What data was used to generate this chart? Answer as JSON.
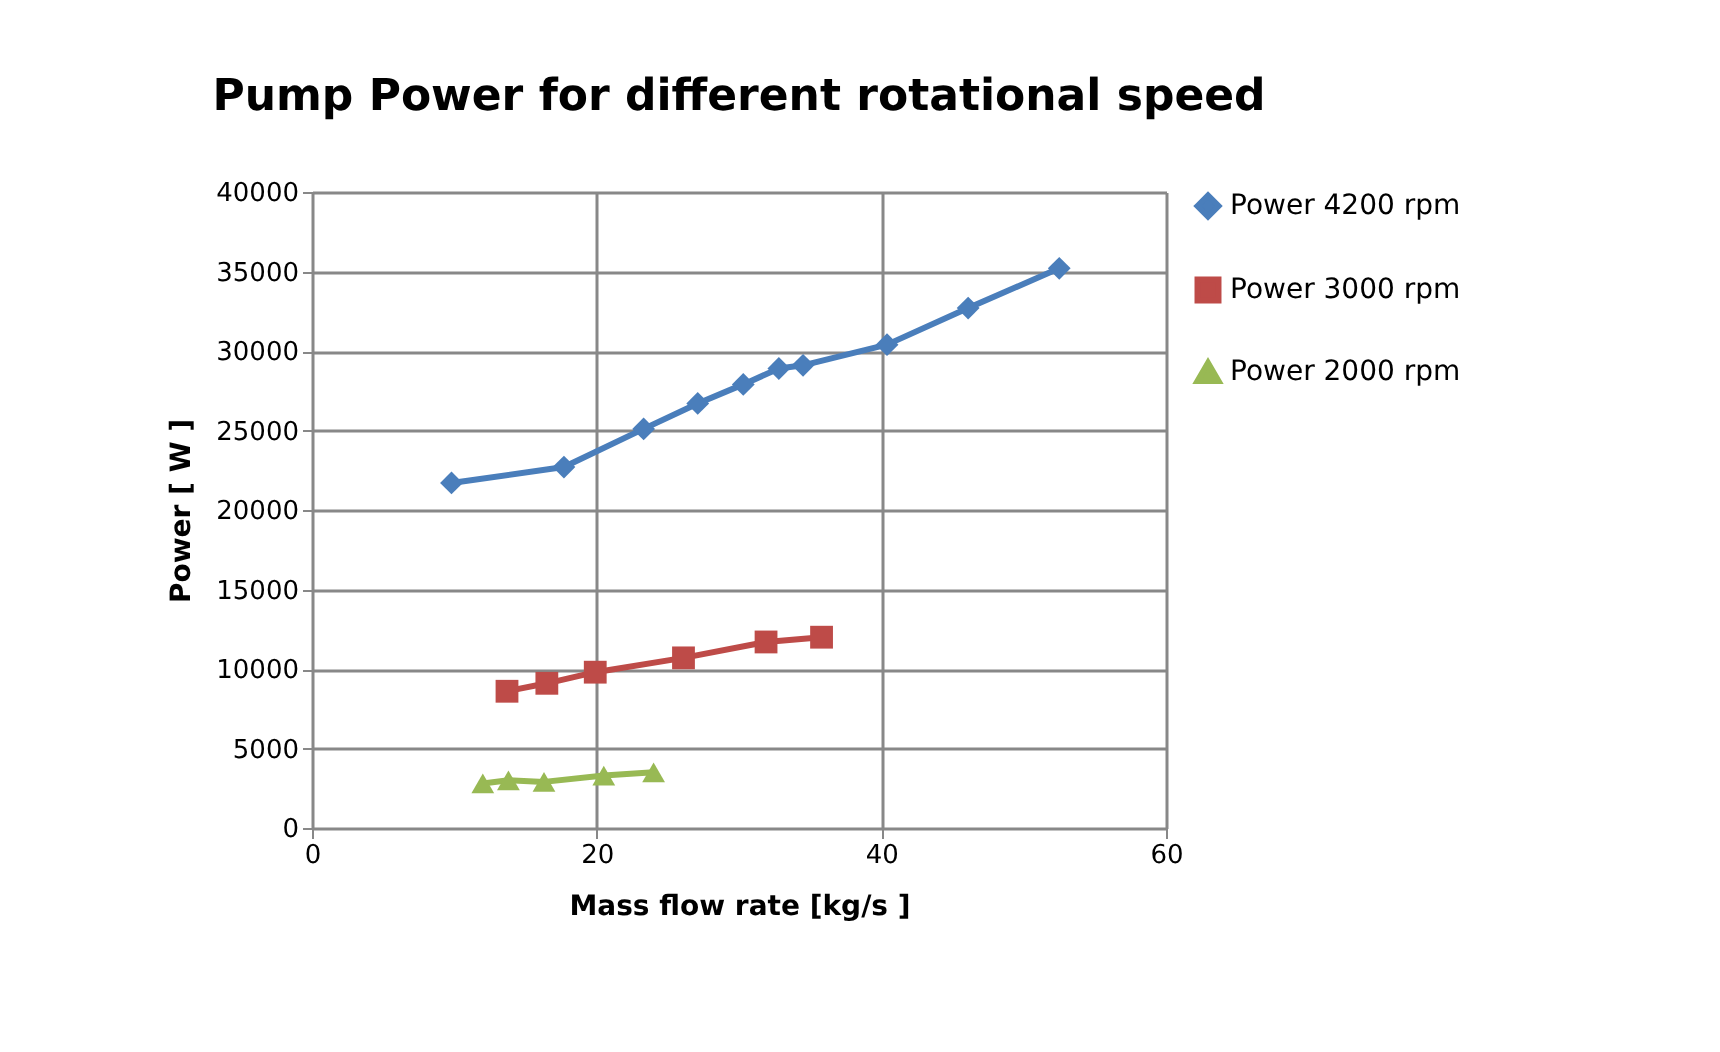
{
  "chart_data": {
    "type": "line",
    "title": "Pump Power for different rotational speed",
    "xlabel": "Mass flow rate [kg/s ]",
    "ylabel": "Power [ W ]",
    "xlim": [
      0,
      60
    ],
    "xticks": [
      0,
      20,
      40,
      60
    ],
    "ylim": [
      0,
      40000
    ],
    "yticks": [
      0,
      5000,
      10000,
      15000,
      20000,
      25000,
      30000,
      35000,
      40000
    ],
    "grid": true,
    "legend": "right",
    "line_style": "solid",
    "series": [
      {
        "name": "Power 4200 rpm",
        "color": "#4a7ebb",
        "marker": "diamond",
        "x": [
          9.8,
          17.7,
          23.3,
          27.1,
          30.3,
          32.8,
          34.5,
          40.4,
          46.1,
          52.5
        ],
        "values": [
          21700,
          22700,
          25100,
          26700,
          27900,
          28900,
          29100,
          30400,
          32700,
          35200
        ]
      },
      {
        "name": "Power 3000 rpm",
        "color": "#be4b48",
        "marker": "square",
        "x": [
          13.7,
          16.5,
          19.9,
          26.1,
          31.9,
          35.8
        ],
        "values": [
          8600,
          9100,
          9800,
          10700,
          11700,
          12000
        ]
      },
      {
        "name": "Power 2000 rpm",
        "color": "#98b954",
        "marker": "triangle",
        "x": [
          12.0,
          13.8,
          16.3,
          20.5,
          24.0
        ],
        "values": [
          2800,
          3000,
          2900,
          3300,
          3500
        ]
      }
    ]
  }
}
